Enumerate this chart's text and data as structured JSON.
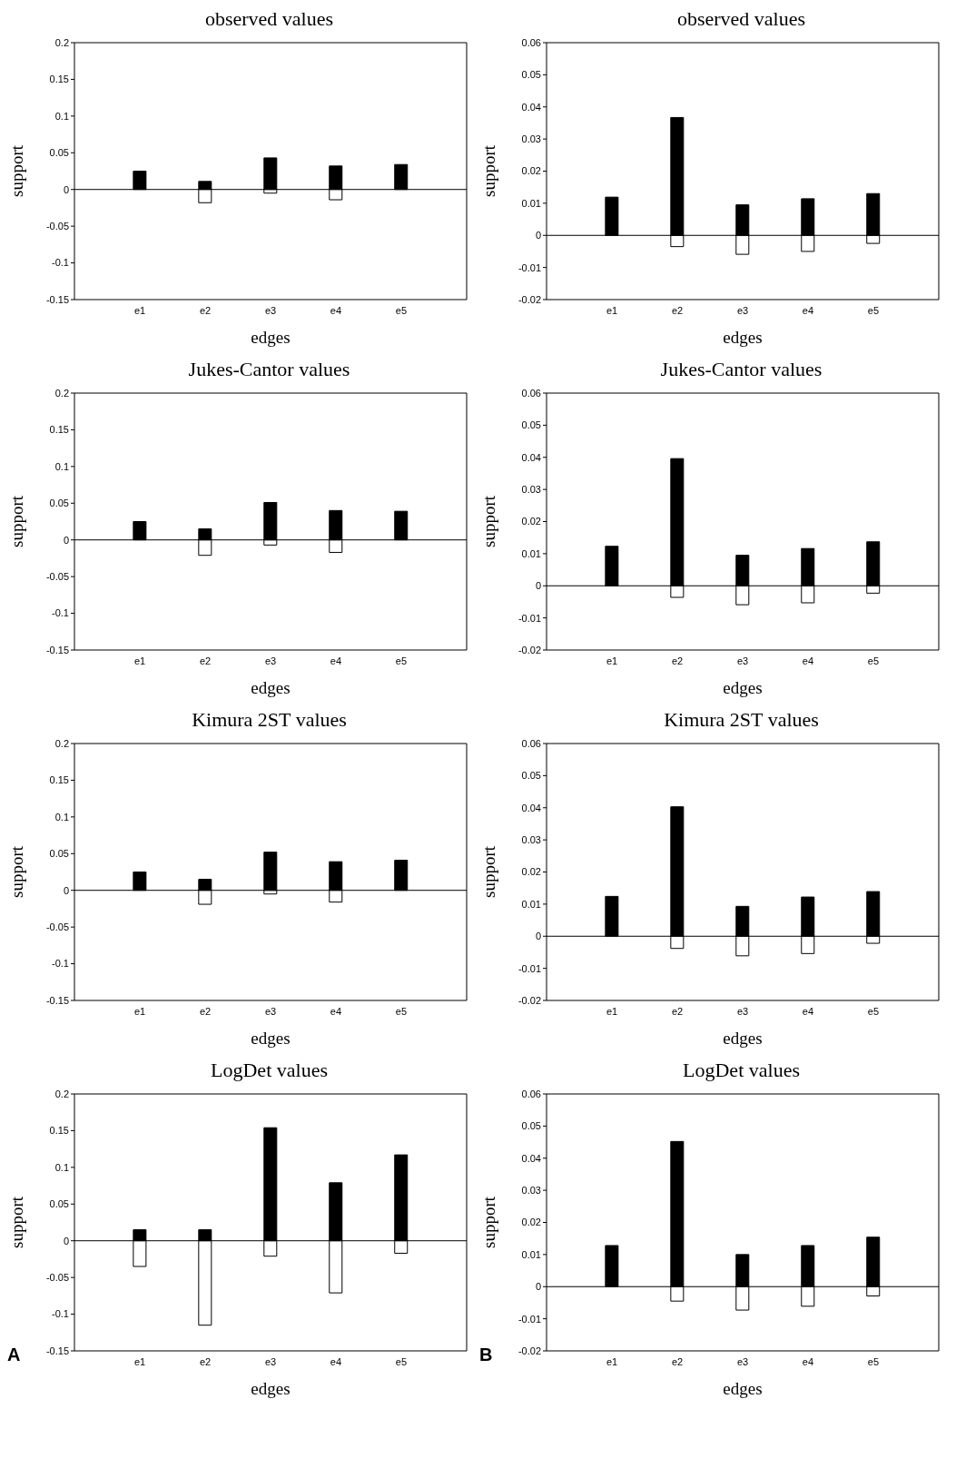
{
  "chart_data": [
    {
      "type": "bar",
      "title": "observed values",
      "xlabel": "edges",
      "ylabel": "support",
      "categories": [
        "e1",
        "e2",
        "e3",
        "e4",
        "e5"
      ],
      "stacked": true,
      "ylim": [
        -0.15,
        0.2
      ],
      "yticks": [
        -0.15,
        -0.1,
        -0.05,
        0,
        0.05,
        0.1,
        0.15,
        0.2
      ],
      "grid": false,
      "legend": false,
      "ref_lines": [
        {
          "axis": "y",
          "value": 0
        }
      ],
      "series": [
        {
          "color": "#000000",
          "values": [
            0.025,
            0.011,
            0.043,
            0.032,
            0.034
          ]
        },
        {
          "color": "#ffffff",
          "values": [
            null,
            -0.018,
            -0.005,
            -0.014,
            null
          ]
        }
      ]
    },
    {
      "type": "bar",
      "title": "observed values",
      "xlabel": "edges",
      "ylabel": "support",
      "categories": [
        "e1",
        "e2",
        "e3",
        "e4",
        "e5"
      ],
      "stacked": true,
      "ylim": [
        -0.02,
        0.06
      ],
      "yticks": [
        -0.02,
        -0.01,
        0,
        0.01,
        0.02,
        0.03,
        0.04,
        0.05,
        0.06
      ],
      "grid": false,
      "legend": false,
      "ref_lines": [
        {
          "axis": "y",
          "value": 0
        }
      ],
      "series": [
        {
          "color": "#000000",
          "values": [
            0.0119,
            0.0367,
            0.0095,
            0.0114,
            0.013
          ]
        },
        {
          "color": "#ffffff",
          "values": [
            null,
            -0.0035,
            -0.0059,
            -0.005,
            -0.0025
          ]
        }
      ]
    },
    {
      "type": "bar",
      "title": "Jukes-Cantor values",
      "xlabel": "edges",
      "ylabel": "support",
      "categories": [
        "e1",
        "e2",
        "e3",
        "e4",
        "e5"
      ],
      "stacked": true,
      "ylim": [
        -0.15,
        0.2
      ],
      "yticks": [
        -0.15,
        -0.1,
        -0.05,
        0,
        0.05,
        0.1,
        0.15,
        0.2
      ],
      "grid": false,
      "legend": false,
      "ref_lines": [
        {
          "axis": "y",
          "value": 0
        }
      ],
      "series": [
        {
          "color": "#000000",
          "values": [
            0.025,
            0.015,
            0.051,
            0.04,
            0.039
          ]
        },
        {
          "color": "#ffffff",
          "values": [
            null,
            -0.021,
            -0.007,
            -0.017,
            null
          ]
        }
      ]
    },
    {
      "type": "bar",
      "title": "Jukes-Cantor values",
      "xlabel": "edges",
      "ylabel": "support",
      "categories": [
        "e1",
        "e2",
        "e3",
        "e4",
        "e5"
      ],
      "stacked": true,
      "ylim": [
        -0.02,
        0.06
      ],
      "yticks": [
        -0.02,
        -0.01,
        0,
        0.01,
        0.02,
        0.03,
        0.04,
        0.05,
        0.06
      ],
      "grid": false,
      "legend": false,
      "ref_lines": [
        {
          "axis": "y",
          "value": 0
        }
      ],
      "series": [
        {
          "color": "#000000",
          "values": [
            0.0123,
            0.0396,
            0.0095,
            0.0116,
            0.0137
          ]
        },
        {
          "color": "#ffffff",
          "values": [
            null,
            -0.0036,
            -0.0059,
            -0.0053,
            -0.0023
          ]
        }
      ]
    },
    {
      "type": "bar",
      "title": "Kimura 2ST values",
      "xlabel": "edges",
      "ylabel": "support",
      "categories": [
        "e1",
        "e2",
        "e3",
        "e4",
        "e5"
      ],
      "stacked": true,
      "ylim": [
        -0.15,
        0.2
      ],
      "yticks": [
        -0.15,
        -0.1,
        -0.05,
        0,
        0.05,
        0.1,
        0.15,
        0.2
      ],
      "grid": false,
      "legend": false,
      "ref_lines": [
        {
          "axis": "y",
          "value": 0
        }
      ],
      "series": [
        {
          "color": "#000000",
          "values": [
            0.025,
            0.015,
            0.052,
            0.039,
            0.041
          ]
        },
        {
          "color": "#ffffff",
          "values": [
            null,
            -0.019,
            -0.005,
            -0.016,
            null
          ]
        }
      ]
    },
    {
      "type": "bar",
      "title": "Kimura 2ST values",
      "xlabel": "edges",
      "ylabel": "support",
      "categories": [
        "e1",
        "e2",
        "e3",
        "e4",
        "e5"
      ],
      "stacked": true,
      "ylim": [
        -0.02,
        0.06
      ],
      "yticks": [
        -0.02,
        -0.01,
        0,
        0.01,
        0.02,
        0.03,
        0.04,
        0.05,
        0.06
      ],
      "grid": false,
      "legend": false,
      "ref_lines": [
        {
          "axis": "y",
          "value": 0
        }
      ],
      "series": [
        {
          "color": "#000000",
          "values": [
            0.0124,
            0.0403,
            0.0093,
            0.0122,
            0.0139
          ]
        },
        {
          "color": "#ffffff",
          "values": [
            null,
            -0.0038,
            -0.0061,
            -0.0054,
            -0.0022
          ]
        }
      ]
    },
    {
      "type": "bar",
      "title": "LogDet values",
      "xlabel": "edges",
      "ylabel": "support",
      "categories": [
        "e1",
        "e2",
        "e3",
        "e4",
        "e5"
      ],
      "stacked": true,
      "ylim": [
        -0.15,
        0.2
      ],
      "yticks": [
        -0.15,
        -0.1,
        -0.05,
        0,
        0.05,
        0.1,
        0.15,
        0.2
      ],
      "grid": false,
      "legend": false,
      "ref_lines": [
        {
          "axis": "y",
          "value": 0
        }
      ],
      "annotations": [
        "A"
      ],
      "series": [
        {
          "color": "#000000",
          "values": [
            0.015,
            0.015,
            0.154,
            0.079,
            0.117
          ]
        },
        {
          "color": "#ffffff",
          "values": [
            -0.035,
            -0.115,
            -0.021,
            -0.071,
            -0.017
          ]
        }
      ]
    },
    {
      "type": "bar",
      "title": "LogDet values",
      "xlabel": "edges",
      "ylabel": "support",
      "categories": [
        "e1",
        "e2",
        "e3",
        "e4",
        "e5"
      ],
      "stacked": true,
      "ylim": [
        -0.02,
        0.06
      ],
      "yticks": [
        -0.02,
        -0.01,
        0,
        0.01,
        0.02,
        0.03,
        0.04,
        0.05,
        0.06
      ],
      "grid": false,
      "legend": false,
      "ref_lines": [
        {
          "axis": "y",
          "value": 0
        }
      ],
      "annotations": [
        "B"
      ],
      "series": [
        {
          "color": "#000000",
          "values": [
            0.0128,
            0.0452,
            0.01,
            0.0128,
            0.0154
          ]
        },
        {
          "color": "#ffffff",
          "values": [
            null,
            -0.0045,
            -0.0073,
            -0.0061,
            -0.0029
          ]
        }
      ]
    }
  ]
}
